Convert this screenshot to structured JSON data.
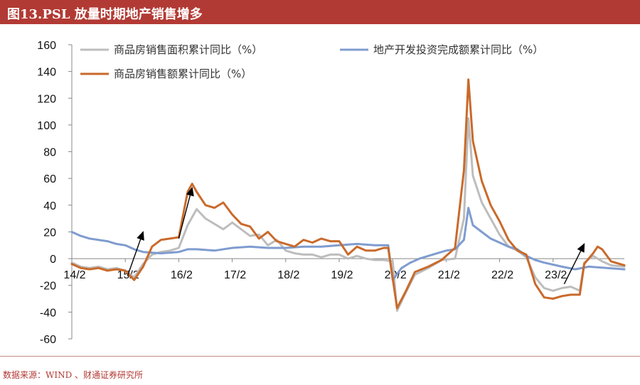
{
  "title": "图13.PSL 放量时期地产销售增多",
  "source": "数据来源：WIND 、财通证券研究所",
  "colors": {
    "title_bar": "#b23a34",
    "area": "#bdbdbd",
    "invest": "#7f9ccf",
    "sales": "#c96a2b",
    "arrow": "#000000"
  },
  "chart_data": {
    "type": "line",
    "x_unit": "month index from 2014-02",
    "x_tick_labels": [
      "14/2",
      "15/2",
      "16/2",
      "17/2",
      "18/2",
      "19/2",
      "20/2",
      "21/2",
      "22/2",
      "23/2"
    ],
    "y_ticks": [
      "160",
      "140",
      "120",
      "100",
      "80",
      "60",
      "40",
      "20",
      "0",
      "-20",
      "-40",
      "-60"
    ],
    "ylim": [
      -60,
      160
    ],
    "legend": [
      {
        "name": "商品房销售面积累计同比（%）",
        "key": "area"
      },
      {
        "name": "地产开发投资完成额累计同比（%）",
        "key": "invest"
      },
      {
        "name": "商品房销售额累计同比（%）",
        "key": "sales"
      }
    ],
    "series": [
      {
        "name": "商品房销售面积累计同比（%）",
        "key": "area",
        "points": [
          [
            0,
            -3
          ],
          [
            2,
            -6
          ],
          [
            4,
            -7
          ],
          [
            6,
            -6
          ],
          [
            8,
            -8
          ],
          [
            10,
            -7
          ],
          [
            12,
            -9
          ],
          [
            14,
            -14
          ],
          [
            16,
            -4
          ],
          [
            18,
            3
          ],
          [
            20,
            5
          ],
          [
            22,
            6
          ],
          [
            24,
            8
          ],
          [
            26,
            25
          ],
          [
            28,
            37
          ],
          [
            30,
            30
          ],
          [
            32,
            26
          ],
          [
            34,
            22
          ],
          [
            36,
            27
          ],
          [
            38,
            22
          ],
          [
            40,
            17
          ],
          [
            42,
            18
          ],
          [
            44,
            10
          ],
          [
            46,
            14
          ],
          [
            48,
            6
          ],
          [
            50,
            4
          ],
          [
            52,
            3
          ],
          [
            54,
            3
          ],
          [
            56,
            1
          ],
          [
            58,
            3
          ],
          [
            60,
            3
          ],
          [
            62,
            0
          ],
          [
            64,
            2
          ],
          [
            66,
            0
          ],
          [
            68,
            -1
          ],
          [
            70,
            -1
          ],
          [
            72,
            -2
          ],
          [
            73,
            -39
          ],
          [
            75,
            -25
          ],
          [
            77,
            -12
          ],
          [
            80,
            -7
          ],
          [
            83,
            -1
          ],
          [
            86,
            0
          ],
          [
            88,
            30
          ],
          [
            89,
            105
          ],
          [
            90,
            62
          ],
          [
            92,
            42
          ],
          [
            94,
            30
          ],
          [
            96,
            18
          ],
          [
            98,
            9
          ],
          [
            100,
            6
          ],
          [
            102,
            1
          ],
          [
            104,
            -14
          ],
          [
            106,
            -22
          ],
          [
            108,
            -24
          ],
          [
            110,
            -22
          ],
          [
            112,
            -21
          ],
          [
            114,
            -24
          ],
          [
            115,
            -3
          ],
          [
            117,
            2
          ],
          [
            119,
            -2
          ],
          [
            121,
            -5
          ],
          [
            124,
            -6
          ]
        ]
      },
      {
        "name": "地产开发投资完成额累计同比（%）",
        "key": "invest",
        "points": [
          [
            0,
            20
          ],
          [
            2,
            17
          ],
          [
            4,
            15
          ],
          [
            8,
            13
          ],
          [
            10,
            11
          ],
          [
            12,
            10
          ],
          [
            14,
            7
          ],
          [
            16,
            5
          ],
          [
            20,
            4
          ],
          [
            24,
            5
          ],
          [
            26,
            7
          ],
          [
            28,
            7
          ],
          [
            32,
            6
          ],
          [
            36,
            8
          ],
          [
            40,
            9
          ],
          [
            44,
            8
          ],
          [
            48,
            8
          ],
          [
            52,
            9
          ],
          [
            56,
            9
          ],
          [
            60,
            10
          ],
          [
            64,
            11
          ],
          [
            68,
            10
          ],
          [
            71,
            10
          ],
          [
            72,
            -16
          ],
          [
            74,
            -7
          ],
          [
            76,
            -3
          ],
          [
            78,
            0
          ],
          [
            80,
            2
          ],
          [
            82,
            4
          ],
          [
            84,
            6
          ],
          [
            86,
            7
          ],
          [
            88,
            14
          ],
          [
            89,
            38
          ],
          [
            90,
            25
          ],
          [
            92,
            20
          ],
          [
            94,
            15
          ],
          [
            96,
            12
          ],
          [
            98,
            9
          ],
          [
            100,
            7
          ],
          [
            102,
            2
          ],
          [
            104,
            -1
          ],
          [
            106,
            -3
          ],
          [
            110,
            -6
          ],
          [
            113,
            -8
          ],
          [
            116,
            -6
          ],
          [
            120,
            -7
          ],
          [
            124,
            -8
          ]
        ]
      },
      {
        "name": "商品房销售额累计同比（%）",
        "key": "sales",
        "points": [
          [
            0,
            -4
          ],
          [
            2,
            -7
          ],
          [
            4,
            -8
          ],
          [
            6,
            -7
          ],
          [
            8,
            -9
          ],
          [
            10,
            -8
          ],
          [
            12,
            -9
          ],
          [
            14,
            -16
          ],
          [
            16,
            -6
          ],
          [
            18,
            9
          ],
          [
            20,
            14
          ],
          [
            22,
            15
          ],
          [
            24,
            16
          ],
          [
            26,
            50
          ],
          [
            27,
            56
          ],
          [
            28,
            50
          ],
          [
            30,
            40
          ],
          [
            32,
            38
          ],
          [
            34,
            42
          ],
          [
            36,
            33
          ],
          [
            38,
            26
          ],
          [
            40,
            24
          ],
          [
            42,
            15
          ],
          [
            44,
            20
          ],
          [
            46,
            13
          ],
          [
            48,
            11
          ],
          [
            50,
            9
          ],
          [
            52,
            14
          ],
          [
            54,
            12
          ],
          [
            56,
            15
          ],
          [
            58,
            13
          ],
          [
            60,
            13
          ],
          [
            62,
            3
          ],
          [
            64,
            9
          ],
          [
            66,
            6
          ],
          [
            68,
            6
          ],
          [
            70,
            8
          ],
          [
            71,
            8
          ],
          [
            73,
            -37
          ],
          [
            75,
            -24
          ],
          [
            77,
            -10
          ],
          [
            80,
            -6
          ],
          [
            83,
            -1
          ],
          [
            86,
            8
          ],
          [
            88,
            66
          ],
          [
            89,
            134
          ],
          [
            90,
            88
          ],
          [
            92,
            58
          ],
          [
            94,
            40
          ],
          [
            96,
            28
          ],
          [
            98,
            14
          ],
          [
            100,
            6
          ],
          [
            102,
            3
          ],
          [
            104,
            -19
          ],
          [
            106,
            -29
          ],
          [
            108,
            -30
          ],
          [
            110,
            -28
          ],
          [
            112,
            -27
          ],
          [
            114,
            -27
          ],
          [
            115,
            -4
          ],
          [
            117,
            4
          ],
          [
            118,
            9
          ],
          [
            119,
            7
          ],
          [
            121,
            -2
          ],
          [
            124,
            -5
          ]
        ]
      }
    ],
    "annotations": [
      {
        "type": "arrow",
        "from": [
          12.5,
          -13
        ],
        "to": [
          16,
          20
        ]
      },
      {
        "type": "arrow",
        "from": [
          24,
          15
        ],
        "to": [
          27,
          53
        ]
      },
      {
        "type": "arrow",
        "from": [
          110.5,
          -19
        ],
        "to": [
          115,
          11
        ]
      }
    ]
  }
}
